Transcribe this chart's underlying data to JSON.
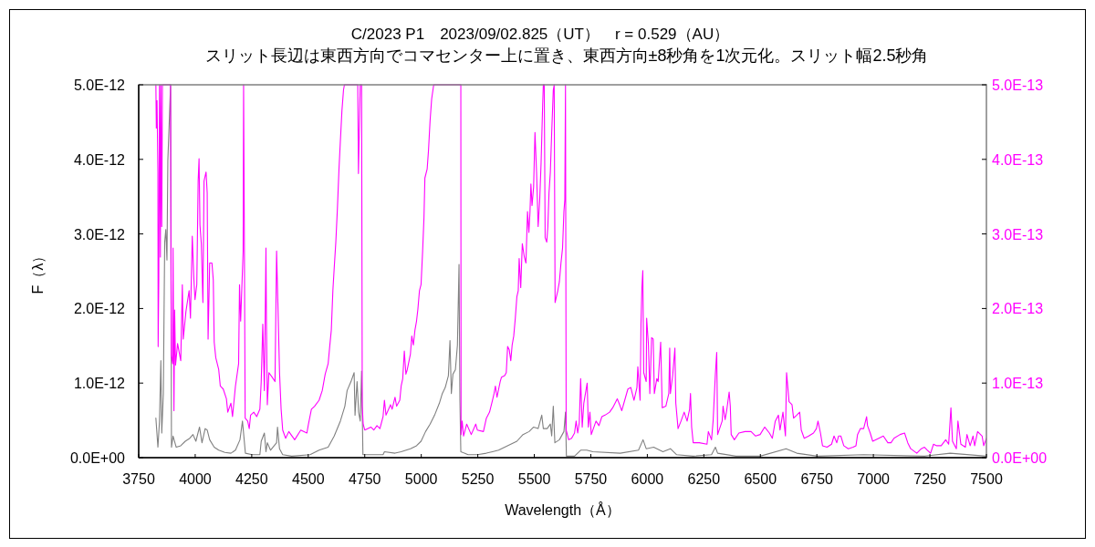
{
  "chart_data": {
    "type": "line",
    "title": "C/2023 P1　2023/09/02.825（UT）　r = 0.529（AU）",
    "subtitle": "スリット長辺は東西方向でコマセンター上に置き、東西方向±8秒角を1次元化。スリット幅2.5秒角",
    "xlabel": "Wavelength（Å）",
    "ylabel": "F（λ）",
    "xlim": [
      3750,
      7500
    ],
    "xticks": [
      3750,
      4000,
      4250,
      4500,
      4750,
      5000,
      5250,
      5500,
      5750,
      6000,
      6250,
      6500,
      6750,
      7000,
      7250,
      7500
    ],
    "ylim": [
      0,
      5e-12
    ],
    "yticks": [
      {
        "value": 0,
        "label": "0.0E+00"
      },
      {
        "value": 1e-12,
        "label": "1.0E-12"
      },
      {
        "value": 2e-12,
        "label": "2.0E-12"
      },
      {
        "value": 3e-12,
        "label": "3.0E-12"
      },
      {
        "value": 4e-12,
        "label": "4.0E-12"
      },
      {
        "value": 5e-12,
        "label": "5.0E-12"
      }
    ],
    "y2lim": [
      0,
      5e-13
    ],
    "y2ticks": [
      {
        "value": 0,
        "label": "0.0E+00"
      },
      {
        "value": 1e-13,
        "label": "1.0E-13"
      },
      {
        "value": 2e-13,
        "label": "2.0E-13"
      },
      {
        "value": 3e-13,
        "label": "3.0E-13"
      },
      {
        "value": 4e-13,
        "label": "4.0E-13"
      },
      {
        "value": 5e-13,
        "label": "5.0E-13"
      }
    ],
    "series": [
      {
        "color": "#808080",
        "x": [
          3826,
          3835,
          3842,
          3848,
          3852,
          3859,
          3865,
          3870,
          3875,
          3879,
          3885,
          3891,
          3895,
          3902,
          3916,
          3936,
          3956,
          3976,
          3990,
          4003,
          4019,
          4030,
          4044,
          4053,
          4064,
          4084,
          4104,
          4131,
          4158,
          4178,
          4198,
          4209,
          4222,
          4252,
          4286,
          4292,
          4306,
          4313,
          4319,
          4333,
          4360,
          4364,
          4373,
          4387,
          4427,
          4508,
          4548,
          4588,
          4615,
          4642,
          4662,
          4672,
          4689,
          4703,
          4707,
          4716,
          4723,
          4730,
          4736,
          4742,
          4750,
          4831,
          4837,
          4884,
          4911,
          4952,
          4979,
          4999,
          5019,
          5039,
          5059,
          5080,
          5093,
          5106,
          5120,
          5127,
          5133,
          5140,
          5151,
          5160,
          5167,
          5171,
          5175,
          5207,
          5248,
          5288,
          5315,
          5342,
          5369,
          5396,
          5423,
          5450,
          5477,
          5497,
          5517,
          5533,
          5540,
          5557,
          5571,
          5577,
          5584,
          5591,
          5611,
          5631,
          5638,
          5642,
          5678,
          5705,
          5732,
          5759,
          5880,
          5961,
          5981,
          5995,
          6028,
          6069,
          6102,
          6129,
          6203,
          6284,
          6301,
          6311,
          6392,
          6499,
          6614,
          6661,
          6752,
          6957,
          7226,
          7340,
          7500
        ],
        "values": [
          5.3e-13,
          1.4e-13,
          4.9e-13,
          1.3e-12,
          3.3e-13,
          8.6e-13,
          2.89e-12,
          3.06e-12,
          2.65e-12,
          3.99e-12,
          4.48e-12,
          5e-12,
          1.4e-13,
          2.9e-13,
          1.4e-13,
          1.6e-13,
          2.2e-13,
          2.6e-13,
          3.1e-13,
          2.2e-13,
          4.1e-13,
          2e-13,
          3.9e-13,
          3.7e-13,
          2.4e-13,
          1.4e-13,
          1e-13,
          7e-14,
          6e-14,
          1e-13,
          2.4e-13,
          4.9e-13,
          6e-14,
          4e-14,
          4e-14,
          2.2e-13,
          3.3e-13,
          8e-14,
          2e-13,
          1e-13,
          2e-13,
          4.1e-13,
          1.2e-13,
          4e-14,
          2e-14,
          4e-14,
          1e-13,
          1.4e-13,
          2.9e-13,
          4.9e-13,
          6.9e-13,
          9e-13,
          1.02e-12,
          1.14e-12,
          5.7e-13,
          1.02e-12,
          6.1e-13,
          4.9e-13,
          1.16e-12,
          4e-14,
          4e-14,
          4e-14,
          8e-14,
          6e-14,
          8e-14,
          1.2e-13,
          1.6e-13,
          2.2e-13,
          3.5e-13,
          4.5e-13,
          5.7e-13,
          7.3e-13,
          8.6e-13,
          9.4e-13,
          1.1e-12,
          1.57e-12,
          8.6e-13,
          1.12e-12,
          1.18e-12,
          1.51e-12,
          2.59e-12,
          7.7e-13,
          8e-14,
          4e-14,
          4e-14,
          6e-14,
          8e-14,
          1e-13,
          1.4e-13,
          1.8e-13,
          2.2e-13,
          3.1e-13,
          3.5e-13,
          4.1e-13,
          3.9e-13,
          5.7e-13,
          3.9e-13,
          3.9e-13,
          4.5e-13,
          2.9e-13,
          6.9e-13,
          2e-13,
          2.4e-13,
          3.5e-13,
          6.1e-13,
          2e-14,
          2e-14,
          1e-13,
          1e-13,
          8e-14,
          6e-14,
          1e-13,
          2.4e-13,
          1.2e-13,
          1.4e-13,
          8e-14,
          1.2e-13,
          4e-14,
          2e-14,
          4e-14,
          1.4e-13,
          6e-14,
          2e-14,
          2e-14,
          1.2e-13,
          6e-14,
          2e-14,
          4e-14,
          2e-14,
          6e-14,
          2e-14
        ]
      },
      {
        "color": "#ff00ff",
        "axis": "y2",
        "x": [
          3826,
          3828,
          3831,
          3835,
          3836,
          3839,
          3842,
          3846,
          3848,
          3852,
          3855,
          3891,
          3894,
          3900,
          3902,
          3906,
          3909,
          3913,
          3922,
          3936,
          3943,
          3947,
          3959,
          3973,
          3979,
          3987,
          3994,
          3999,
          4007,
          4013,
          4017,
          4021,
          4027,
          4034,
          4039,
          4048,
          4053,
          4057,
          4064,
          4074,
          4080,
          4084,
          4091,
          4104,
          4111,
          4124,
          4138,
          4144,
          4158,
          4165,
          4178,
          4192,
          4196,
          4201,
          4212,
          4214,
          4217,
          4221,
          4232,
          4239,
          4245,
          4259,
          4272,
          4286,
          4292,
          4299,
          4306,
          4313,
          4315,
          4319,
          4326,
          4340,
          4353,
          4360,
          4366,
          4373,
          4380,
          4387,
          4400,
          4414,
          4440,
          4467,
          4494,
          4501,
          4514,
          4528,
          4548,
          4562,
          4575,
          4588,
          4595,
          4602,
          4609,
          4615,
          4622,
          4629,
          4636,
          4642,
          4649,
          4656,
          4660,
          4719,
          4722,
          4730,
          4736,
          4739,
          4743,
          4750,
          4777,
          4790,
          4804,
          4817,
          4831,
          4837,
          4844,
          4864,
          4871,
          4884,
          4891,
          4905,
          4911,
          4918,
          4925,
          4932,
          4938,
          4952,
          4958,
          4965,
          4972,
          4979,
          4985,
          4992,
          4999,
          5006,
          5012,
          5016,
          5026,
          5032,
          5039,
          5046,
          5055,
          5175,
          5176,
          5181,
          5187,
          5201,
          5221,
          5241,
          5248,
          5275,
          5288,
          5302,
          5315,
          5322,
          5328,
          5335,
          5349,
          5355,
          5369,
          5376,
          5382,
          5389,
          5396,
          5402,
          5409,
          5416,
          5423,
          5429,
          5433,
          5440,
          5447,
          5456,
          5463,
          5470,
          5476,
          5481,
          5485,
          5490,
          5497,
          5503,
          5510,
          5517,
          5524,
          5530,
          5537,
          5540,
          5544,
          5548,
          5555,
          5560,
          5565,
          5571,
          5577,
          5584,
          5588,
          5592,
          5604,
          5611,
          5618,
          5625,
          5631,
          5635,
          5638,
          5641,
          5652,
          5665,
          5678,
          5685,
          5692,
          5699,
          5705,
          5712,
          5719,
          5734,
          5739,
          5746,
          5752,
          5766,
          5773,
          5786,
          5799,
          5813,
          5833,
          5847,
          5867,
          5880,
          5887,
          5900,
          5914,
          5927,
          5941,
          5954,
          5958,
          5968,
          5972,
          5976,
          5980,
          5984,
          5995,
          5997,
          6005,
          6011,
          6019,
          6026,
          6031,
          6042,
          6048,
          6059,
          6066,
          6082,
          6095,
          6099,
          6102,
          6112,
          6122,
          6126,
          6136,
          6149,
          6163,
          6176,
          6187,
          6191,
          6196,
          6203,
          6230,
          6264,
          6270,
          6284,
          6291,
          6301,
          6307,
          6311,
          6331,
          6335,
          6344,
          6351,
          6362,
          6367,
          6371,
          6385,
          6405,
          6432,
          6459,
          6479,
          6499,
          6519,
          6540,
          6553,
          6566,
          6580,
          6587,
          6600,
          6611,
          6616,
          6627,
          6640,
          6647,
          6661,
          6674,
          6681,
          6694,
          6714,
          6735,
          6748,
          6755,
          6766,
          6775,
          6795,
          6815,
          6826,
          6838,
          6846,
          6856,
          6869,
          6889,
          6910,
          6923,
          6930,
          6943,
          6957,
          6970,
          6974,
          6986,
          6997,
          7024,
          7044,
          7064,
          7078,
          7091,
          7118,
          7138,
          7152,
          7165,
          7192,
          7212,
          7226,
          7239,
          7253,
          7266,
          7280,
          7300,
          7320,
          7333,
          7343,
          7350,
          7367,
          7374,
          7387,
          7407,
          7414,
          7428,
          7441,
          7448,
          7461,
          7481,
          7488,
          7500
        ],
        "values": [
          5e-13,
          4.42e-13,
          4.79e-13,
          3.83e-13,
          1.49e-13,
          2.4e-13,
          5e-13,
          2.69e-13,
          5e-13,
          3.1e-13,
          5e-13,
          5e-13,
          1.37e-13,
          1.26e-13,
          2.81e-13,
          6.3e-14,
          1.98e-13,
          1.24e-13,
          1.53e-13,
          1.3e-13,
          2.32e-13,
          1.59e-13,
          1.96e-13,
          2.24e-13,
          1.87e-13,
          2.97e-13,
          2.4e-13,
          2.12e-13,
          2.32e-13,
          3.71e-13,
          4.01e-13,
          3.12e-13,
          2.87e-13,
          2.08e-13,
          3.71e-13,
          3.83e-13,
          3.55e-13,
          1.59e-13,
          2.61e-13,
          2.61e-13,
          2.38e-13,
          1.55e-13,
          1.34e-13,
          1.18e-13,
          9.6e-14,
          9.2e-14,
          7.9e-14,
          6.1e-14,
          7.3e-14,
          5.5e-14,
          9.6e-14,
          1.26e-13,
          2.32e-13,
          1.83e-13,
          2.77e-13,
          5e-13,
          3.18e-13,
          5.3e-14,
          4.9e-14,
          3.9e-14,
          5.7e-14,
          6.1e-14,
          5.5e-14,
          6.5e-14,
          1.02e-13,
          1.79e-13,
          9e-14,
          2.81e-13,
          1.85e-13,
          7.1e-14,
          1.14e-13,
          1.08e-13,
          1.02e-13,
          2.77e-13,
          2.04e-13,
          1.14e-13,
          6.5e-14,
          3.7e-14,
          2.6e-14,
          3.5e-14,
          2.4e-14,
          3.7e-14,
          3.3e-14,
          4.5e-14,
          6.5e-14,
          6.9e-14,
          7.7e-14,
          9e-14,
          1.12e-13,
          1.26e-13,
          1.49e-13,
          1.71e-13,
          2.24e-13,
          2.55e-13,
          2.89e-13,
          3.34e-13,
          3.87e-13,
          4.24e-13,
          4.65e-13,
          4.93e-13,
          5e-13,
          5e-13,
          3.81e-13,
          5e-13,
          5e-13,
          6.9e-14,
          4.5e-14,
          3.7e-14,
          4.1e-14,
          3.7e-14,
          4.3e-14,
          3.9e-14,
          5.5e-14,
          7.7e-14,
          5.7e-14,
          7.1e-14,
          6.5e-14,
          8.1e-14,
          6.9e-14,
          7.7e-14,
          9.6e-14,
          1.06e-13,
          1.43e-13,
          1.12e-13,
          1.18e-13,
          1.39e-13,
          1.63e-13,
          1.51e-13,
          1.71e-13,
          1.83e-13,
          1.99e-13,
          2.24e-13,
          2.32e-13,
          2.77e-13,
          3.22e-13,
          3.75e-13,
          3.87e-13,
          4.12e-13,
          4.52e-13,
          4.81e-13,
          5e-13,
          5e-13,
          3.1e-14,
          4.9e-14,
          2.9e-14,
          4.5e-14,
          3.1e-14,
          4.5e-14,
          3.7e-14,
          3.5e-14,
          5.3e-14,
          6.1e-14,
          7.7e-14,
          8.6e-14,
          9.6e-14,
          8.1e-14,
          1.02e-13,
          1.08e-13,
          1.1e-13,
          1.14e-13,
          1.49e-13,
          1.45e-13,
          1.3e-13,
          1.51e-13,
          1.63e-13,
          1.87e-13,
          2.16e-13,
          2.24e-13,
          2.67e-13,
          2.28e-13,
          2.87e-13,
          2.69e-13,
          2.61e-13,
          3.3e-13,
          3.02e-13,
          3.3e-13,
          3.67e-13,
          3.38e-13,
          3.63e-13,
          4.36e-13,
          3.83e-13,
          3.1e-13,
          3.46e-13,
          3.95e-13,
          4.73e-13,
          5e-13,
          5e-13,
          2.95e-13,
          2.89e-13,
          3.1e-13,
          3.55e-13,
          3.83e-13,
          4.36e-13,
          4.93e-13,
          5e-13,
          2.08e-13,
          2.24e-13,
          2.36e-13,
          2.61e-13,
          2.81e-13,
          3.3e-13,
          3.46e-13,
          5e-13,
          3.7e-14,
          2.4e-14,
          2.6e-14,
          3.3e-14,
          4.9e-14,
          3.3e-14,
          4.7e-14,
          1.06e-13,
          4.1e-14,
          7.3e-14,
          1e-13,
          4.1e-14,
          6.1e-14,
          3.1e-14,
          4.3e-14,
          4.9e-14,
          4.3e-14,
          5.5e-14,
          5.7e-14,
          6.1e-14,
          6.7e-14,
          7.9e-14,
          6.9e-14,
          6.3e-14,
          7.7e-14,
          9.2e-14,
          9.4e-14,
          7.7e-14,
          9.4e-14,
          1.22e-13,
          7.7e-14,
          1.79e-13,
          2.28e-13,
          2.51e-13,
          1.14e-13,
          1.02e-13,
          1.87e-13,
          1.51e-13,
          8.6e-14,
          1.61e-13,
          1.59e-13,
          8.6e-14,
          1.06e-13,
          1.02e-13,
          1.55e-13,
          6.7e-14,
          6.9e-14,
          8.6e-14,
          1.47e-13,
          8.6e-14,
          1.1e-13,
          1.47e-13,
          7.3e-14,
          3.9e-14,
          4.9e-14,
          6.1e-14,
          4.9e-14,
          6.5e-14,
          8.6e-14,
          4.1e-14,
          2e-14,
          2e-14,
          1.8e-14,
          3.5e-14,
          2.4e-14,
          4.9e-14,
          1.12e-13,
          1.41e-13,
          3.1e-14,
          4.9e-14,
          6.9e-14,
          5.1e-14,
          6.3e-14,
          8.8e-14,
          6.9e-14,
          3.1e-14,
          2.4e-14,
          3.3e-14,
          3.5e-14,
          3.5e-14,
          2.9e-14,
          3.1e-14,
          4.1e-14,
          3.3e-14,
          2.6e-14,
          4.9e-14,
          5.7e-14,
          3.7e-14,
          6.1e-14,
          2.9e-14,
          1.14e-13,
          7.5e-14,
          7.1e-14,
          5.3e-14,
          5.7e-14,
          6.1e-14,
          3.7e-14,
          2.6e-14,
          2.9e-14,
          3.3e-14,
          3.9e-14,
          4.9e-14,
          3.3e-14,
          1.6e-14,
          1.4e-14,
          1.8e-14,
          2.9e-14,
          2e-14,
          2.9e-14,
          2.9e-14,
          1.6e-14,
          1.2e-14,
          1.4e-14,
          1.6e-14,
          3.1e-14,
          3.9e-14,
          3.9e-14,
          5.5e-14,
          4.3e-14,
          3.3e-14,
          2.2e-14,
          2.6e-14,
          2.9e-14,
          2e-14,
          2e-14,
          2.6e-14,
          3.1e-14,
          3.3e-14,
          2e-14,
          1.2e-14,
          6e-15,
          1.2e-14,
          1.4e-14,
          1e-14,
          6e-15,
          1.8e-14,
          1.6e-14,
          1.6e-14,
          2.4e-14,
          1.8e-14,
          6.7e-14,
          2.2e-14,
          1.2e-14,
          4.9e-14,
          1.8e-14,
          1.4e-14,
          3.1e-14,
          1.6e-14,
          2.9e-14,
          1.6e-14,
          3.5e-14,
          2.9e-14,
          1.6e-14,
          2.6e-14
        ]
      }
    ]
  }
}
